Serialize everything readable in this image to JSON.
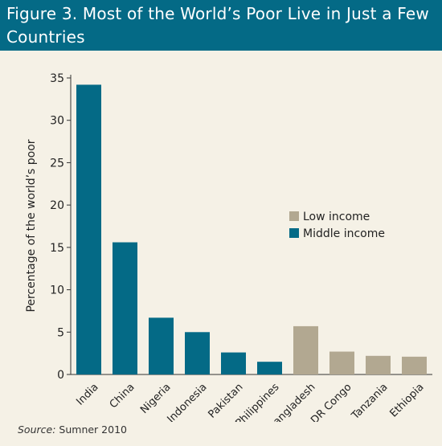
{
  "chart_data": {
    "type": "bar",
    "title": "Figure 3. Most of the World’s Poor Live in Just a Few Countries",
    "ylabel": "Percentage of the world’s poor",
    "xlabel": "",
    "ylim": [
      0,
      35
    ],
    "yticks": [
      0,
      5,
      10,
      15,
      20,
      25,
      30,
      35
    ],
    "grid": false,
    "legend_position": "right",
    "categories": [
      "India",
      "China",
      "Nigeria",
      "Indonesia",
      "Pakistan",
      "Philippines",
      "Bangladesh",
      "DR Congo",
      "Tanzania",
      "Ethiopia"
    ],
    "values": [
      34.2,
      15.6,
      6.7,
      5.0,
      2.6,
      1.5,
      5.7,
      2.7,
      2.2,
      2.1
    ],
    "groups": [
      "Middle income",
      "Middle income",
      "Middle income",
      "Middle income",
      "Middle income",
      "Middle income",
      "Low income",
      "Low income",
      "Low income",
      "Low income"
    ],
    "legend": [
      {
        "name": "Low income",
        "color": "#b2a891"
      },
      {
        "name": "Middle income",
        "color": "#046a86"
      }
    ]
  },
  "source": {
    "label": "Source:",
    "text": "Sumner 2010"
  }
}
